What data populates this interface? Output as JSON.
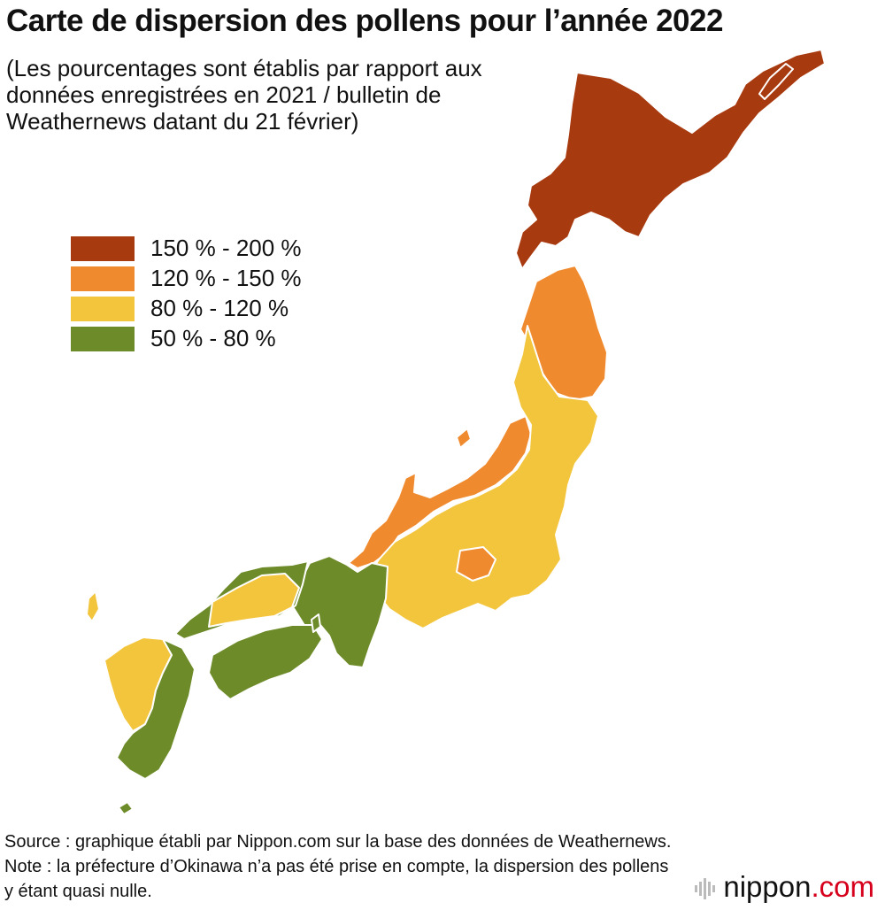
{
  "title": "Carte de dispersion des pollens pour l’année 2022",
  "subtitle": "(Les pourcentages sont établis par rapport aux données enregistrées en 2021 / bulletin de Weathernews datant du 21 février)",
  "legend": {
    "items": [
      {
        "label": "150 % - 200 %",
        "color": "#A83A10"
      },
      {
        "label": "120 % - 150 %",
        "color": "#F08A2E"
      },
      {
        "label": "80 % - 120 %",
        "color": "#F2C53D"
      },
      {
        "label": "50 % - 80 %",
        "color": "#6E8B2A"
      }
    ]
  },
  "regions": {
    "hokkaido": {
      "range": "150 % - 200 %"
    },
    "tohoku_north": {
      "range": "120 % - 150 %"
    },
    "hokuriku_coast": {
      "range": "120 % - 150 %"
    },
    "yamanashi": {
      "range": "120 % - 150 %"
    },
    "tohoku_south_kanto_chubu": {
      "range": "80 % - 120 %"
    },
    "sanyo_north_kyushu": {
      "range": "80 % - 120 %"
    },
    "kinki_shikoku_kyushu_south": {
      "range": "50 % - 80 %"
    }
  },
  "source": "Source : graphique établi par Nippon.com sur la base des données de Weathernews. Note : la préfecture d’Okinawa n’a pas été prise en compte, la dispersion des pollens y étant quasi nulle.",
  "brand": {
    "name": "nippon",
    "suffix": ".com",
    "icon": "nippon-logo-icon"
  }
}
